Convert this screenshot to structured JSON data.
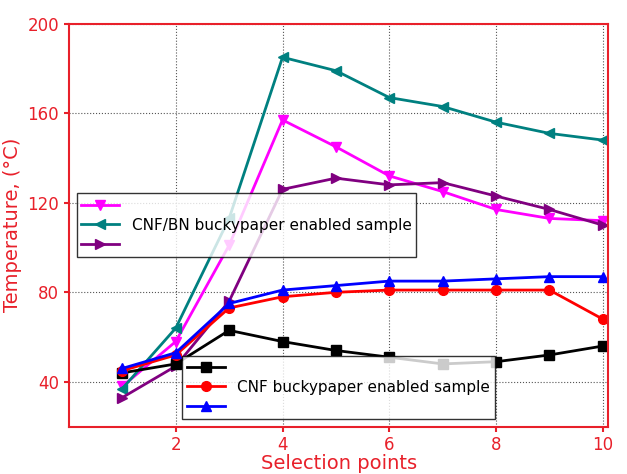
{
  "chart_data": {
    "type": "line",
    "x_label": "Selection points",
    "y_label": "Temperature, (°C)",
    "xlim": [
      0,
      10.1
    ],
    "xticks": [
      2,
      4,
      6,
      8,
      10
    ],
    "ylim": [
      20,
      200
    ],
    "yticks": [
      40,
      80,
      120,
      160,
      200
    ],
    "grid": true,
    "legend": [
      "center left",
      "lower center"
    ],
    "x": [
      1,
      2,
      3,
      4,
      5,
      6,
      7,
      8,
      9,
      10
    ],
    "series": [
      {
        "color": "#ff00ff",
        "marker": "triangle_down",
        "values": [
          38,
          58,
          101,
          157,
          145,
          132,
          125,
          117,
          113,
          112
        ]
      },
      {
        "name": "CNF/BN buckypaper enabled sample",
        "color": "#008080",
        "marker": "triangle_left",
        "values": [
          37,
          64,
          113,
          185,
          179,
          167,
          163,
          156,
          151,
          148
        ]
      },
      {
        "color": "#800080",
        "marker": "triangle_right",
        "values": [
          33,
          47,
          76,
          126,
          131,
          128,
          129,
          123,
          117,
          110
        ]
      },
      {
        "color": "#000000",
        "marker": "square",
        "values": [
          44,
          48,
          63,
          58,
          54,
          51,
          48,
          49,
          52,
          56
        ]
      },
      {
        "name": "CNF buckypaper enabled sample",
        "color": "#ff0000",
        "marker": "circle",
        "values": [
          45,
          52,
          73,
          78,
          80,
          81,
          81,
          81,
          81,
          68
        ]
      },
      {
        "color": "#0000ff",
        "marker": "triangle_up",
        "values": [
          46,
          53,
          75,
          81,
          83,
          85,
          85,
          86,
          87,
          87
        ]
      }
    ]
  }
}
